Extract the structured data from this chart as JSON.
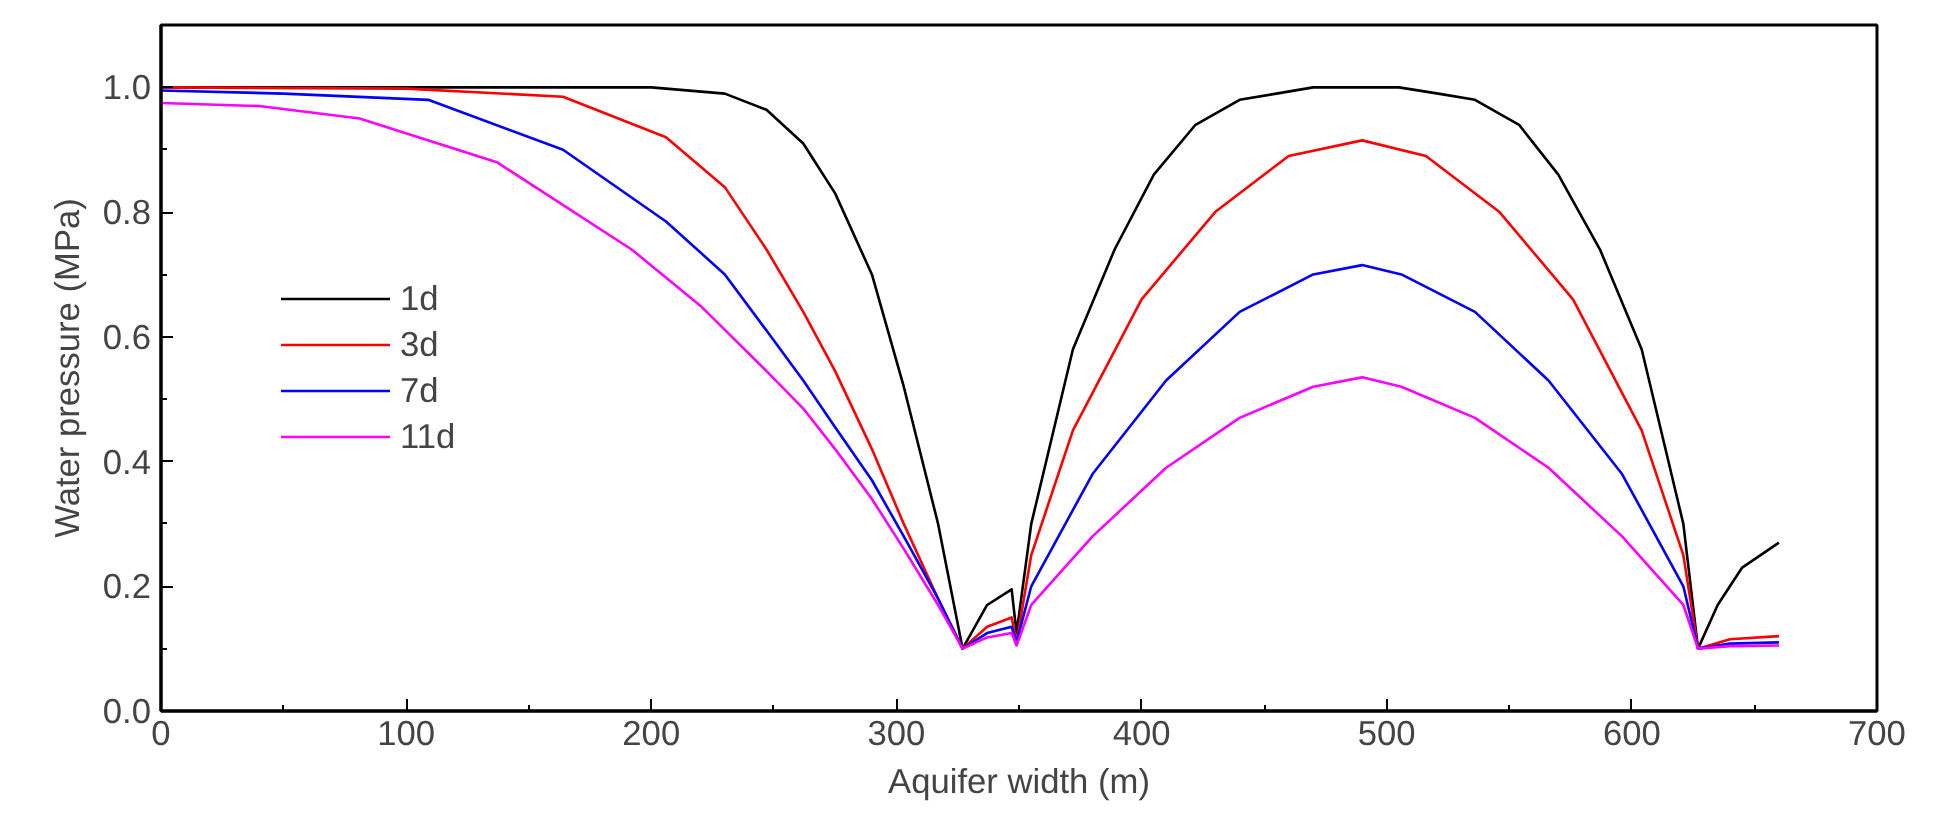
{
  "chart_data": {
    "type": "line",
    "xlabel": "Aquifer width (m)",
    "ylabel": "Water pressure (MPa)",
    "xlim": [
      0,
      700
    ],
    "ylim": [
      0,
      1.1
    ],
    "xticks": [
      0,
      100,
      200,
      300,
      400,
      500,
      600,
      700
    ],
    "yticks": [
      {
        "value": 0,
        "label": "0.0"
      },
      0.2,
      0.4,
      0.6,
      0.8,
      {
        "value": 1,
        "label": "1.0"
      }
    ],
    "grid": false,
    "legend": "left",
    "line_style": "solid",
    "marker": "none",
    "series": [
      {
        "name": "1d",
        "color": "#000000",
        "x": [
          0,
          100,
          200,
          230,
          247,
          262,
          275,
          290,
          303,
          317,
          327,
          337,
          347,
          349,
          355,
          372,
          389,
          405,
          422,
          440,
          455,
          470,
          488,
          505,
          521,
          536,
          554,
          570,
          587,
          604,
          621,
          627,
          635,
          645,
          660
        ],
        "values": [
          1.0,
          1.0,
          1.0,
          0.99,
          0.964,
          0.91,
          0.83,
          0.7,
          0.52,
          0.3,
          0.1,
          0.17,
          0.195,
          0.125,
          0.3,
          0.58,
          0.74,
          0.86,
          0.94,
          0.98,
          0.99,
          1.0,
          1.0,
          1.0,
          0.99,
          0.98,
          0.94,
          0.86,
          0.74,
          0.58,
          0.3,
          0.1,
          0.17,
          0.23,
          0.27
        ]
      },
      {
        "name": "3d",
        "color": "#ff0000",
        "x": [
          0,
          100,
          164,
          206,
          230,
          247,
          262,
          275,
          290,
          303,
          317,
          327,
          337,
          347,
          349,
          355,
          372,
          400,
          430,
          460,
          490,
          516,
          546,
          576,
          604,
          621,
          627,
          640,
          660
        ],
        "values": [
          1.0,
          0.998,
          0.985,
          0.92,
          0.84,
          0.74,
          0.64,
          0.545,
          0.42,
          0.3,
          0.18,
          0.1,
          0.135,
          0.15,
          0.11,
          0.25,
          0.45,
          0.66,
          0.8,
          0.89,
          0.915,
          0.89,
          0.8,
          0.66,
          0.45,
          0.25,
          0.1,
          0.115,
          0.12
        ]
      },
      {
        "name": "7d",
        "color": "#0000ff",
        "x": [
          0,
          50,
          109,
          164,
          206,
          230,
          247,
          262,
          275,
          290,
          303,
          317,
          327,
          337,
          347,
          349,
          355,
          380,
          410,
          440,
          470,
          490,
          506,
          536,
          566,
          596,
          621,
          627,
          640,
          660
        ],
        "values": [
          0.995,
          0.99,
          0.98,
          0.9,
          0.785,
          0.7,
          0.61,
          0.53,
          0.455,
          0.37,
          0.28,
          0.18,
          0.1,
          0.125,
          0.135,
          0.11,
          0.2,
          0.38,
          0.53,
          0.64,
          0.7,
          0.715,
          0.7,
          0.64,
          0.53,
          0.38,
          0.2,
          0.1,
          0.108,
          0.11
        ]
      },
      {
        "name": "11d",
        "color": "#ff00ff",
        "x": [
          0,
          40,
          81,
          137,
          192,
          220,
          247,
          262,
          275,
          290,
          303,
          317,
          327,
          337,
          347,
          349,
          355,
          380,
          410,
          440,
          470,
          490,
          506,
          536,
          566,
          596,
          621,
          627,
          640,
          660
        ],
        "values": [
          0.975,
          0.97,
          0.95,
          0.88,
          0.74,
          0.65,
          0.545,
          0.485,
          0.42,
          0.34,
          0.26,
          0.17,
          0.1,
          0.118,
          0.125,
          0.105,
          0.17,
          0.28,
          0.39,
          0.47,
          0.52,
          0.535,
          0.52,
          0.47,
          0.39,
          0.28,
          0.17,
          0.1,
          0.104,
          0.105
        ]
      }
    ]
  }
}
